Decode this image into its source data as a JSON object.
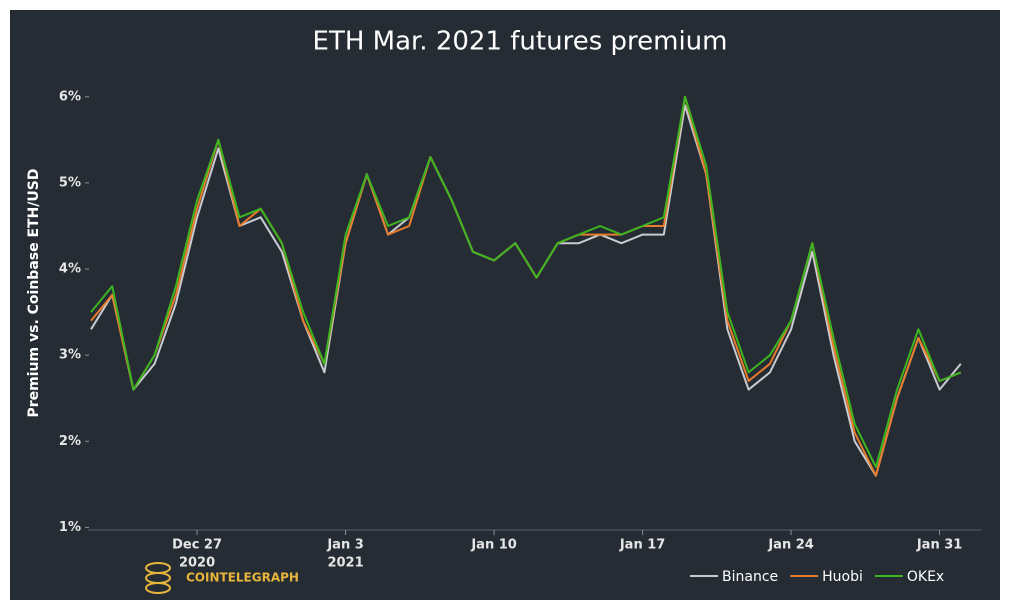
{
  "chart_data": {
    "type": "line",
    "title": "ETH Mar. 2021 futures premium",
    "y_label": "Premium vs. Coinbase ETH/USD",
    "watermark": "COINTELEGRAPH",
    "x": [
      "2020-12-22",
      "2020-12-23",
      "2020-12-24",
      "2020-12-25",
      "2020-12-26",
      "2020-12-27",
      "2020-12-28",
      "2020-12-29",
      "2020-12-30",
      "2020-12-31",
      "2021-01-01",
      "2021-01-02",
      "2021-01-03",
      "2021-01-04",
      "2021-01-05",
      "2021-01-06",
      "2021-01-07",
      "2021-01-08",
      "2021-01-09",
      "2021-01-10",
      "2021-01-11",
      "2021-01-12",
      "2021-01-13",
      "2021-01-14",
      "2021-01-15",
      "2021-01-16",
      "2021-01-17",
      "2021-01-18",
      "2021-01-19",
      "2021-01-20",
      "2021-01-21",
      "2021-01-22",
      "2021-01-23",
      "2021-01-24",
      "2021-01-25",
      "2021-01-26",
      "2021-01-27",
      "2021-01-28",
      "2021-01-29",
      "2021-01-30",
      "2021-01-31",
      "2021-02-01"
    ],
    "series": [
      {
        "name": "Binance",
        "color": "#c8ccd2",
        "values": [
          3.3,
          3.7,
          2.6,
          2.9,
          3.6,
          4.6,
          5.4,
          4.5,
          4.6,
          4.2,
          3.4,
          2.8,
          4.3,
          5.1,
          4.4,
          4.6,
          5.3,
          4.8,
          4.2,
          4.1,
          4.3,
          3.9,
          4.3,
          4.3,
          4.4,
          4.3,
          4.4,
          4.4,
          5.9,
          5.1,
          3.3,
          2.6,
          2.8,
          3.3,
          4.2,
          3.0,
          2.0,
          1.6,
          2.5,
          3.2,
          2.6,
          2.9
        ]
      },
      {
        "name": "Huobi",
        "color": "#e87b2c",
        "values": [
          3.4,
          3.7,
          2.6,
          3.0,
          3.7,
          4.7,
          5.5,
          4.5,
          4.7,
          4.3,
          3.4,
          2.9,
          4.3,
          5.1,
          4.4,
          4.5,
          5.3,
          4.8,
          4.2,
          4.1,
          4.3,
          3.9,
          4.3,
          4.4,
          4.4,
          4.4,
          4.5,
          4.5,
          6.0,
          5.1,
          3.4,
          2.7,
          2.9,
          3.4,
          4.3,
          3.1,
          2.1,
          1.6,
          2.5,
          3.2,
          2.7,
          2.8
        ]
      },
      {
        "name": "OKEx",
        "color": "#3cb521",
        "values": [
          3.5,
          3.8,
          2.6,
          3.0,
          3.8,
          4.8,
          5.5,
          4.6,
          4.7,
          4.3,
          3.5,
          2.9,
          4.4,
          5.1,
          4.5,
          4.6,
          5.3,
          4.8,
          4.2,
          4.1,
          4.3,
          3.9,
          4.3,
          4.4,
          4.5,
          4.4,
          4.5,
          4.6,
          6.0,
          5.2,
          3.5,
          2.8,
          3.0,
          3.4,
          4.3,
          3.2,
          2.2,
          1.7,
          2.6,
          3.3,
          2.7,
          2.8
        ]
      }
    ],
    "xlim": [
      "2020-12-22",
      "2021-02-02"
    ],
    "xticks": [
      {
        "value": "2020-12-27",
        "label": "Dec 27",
        "sublabel": "2020"
      },
      {
        "value": "2021-01-03",
        "label": "Jan 3",
        "sublabel": "2021"
      },
      {
        "value": "2021-01-10",
        "label": "Jan 10"
      },
      {
        "value": "2021-01-17",
        "label": "Jan 17"
      },
      {
        "value": "2021-01-24",
        "label": "Jan 24"
      },
      {
        "value": "2021-01-31",
        "label": "Jan 31"
      }
    ],
    "ylim": [
      0.97,
      6.45
    ],
    "yticks": [
      {
        "value": 1,
        "label": "1%"
      },
      {
        "value": 2,
        "label": "2%"
      },
      {
        "value": 3,
        "label": "3%"
      },
      {
        "value": 4,
        "label": "4%"
      },
      {
        "value": 5,
        "label": "5%"
      },
      {
        "value": 6,
        "label": "6%"
      }
    ],
    "grid": false,
    "legend": "bottom-right"
  }
}
